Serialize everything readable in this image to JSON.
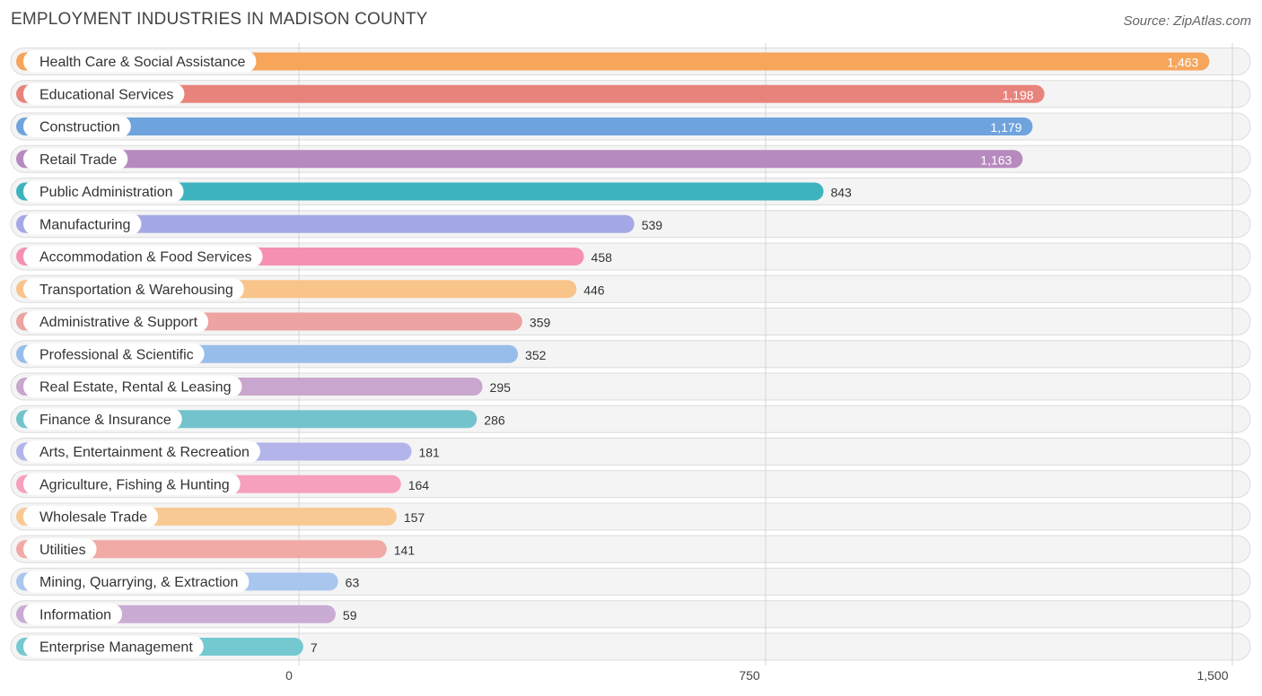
{
  "chart_data": {
    "type": "bar",
    "orientation": "horizontal",
    "title": "EMPLOYMENT INDUSTRIES IN MADISON COUNTY",
    "source": "Source: ZipAtlas.com",
    "categories": [
      "Health Care & Social Assistance",
      "Educational Services",
      "Construction",
      "Retail Trade",
      "Public Administration",
      "Manufacturing",
      "Accommodation & Food Services",
      "Transportation & Warehousing",
      "Administrative & Support",
      "Professional & Scientific",
      "Real Estate, Rental & Leasing",
      "Finance & Insurance",
      "Arts, Entertainment & Recreation",
      "Agriculture, Fishing & Hunting",
      "Wholesale Trade",
      "Utilities",
      "Mining, Quarrying, & Extraction",
      "Information",
      "Enterprise Management"
    ],
    "values": [
      1463,
      1198,
      1179,
      1163,
      843,
      539,
      458,
      446,
      359,
      352,
      295,
      286,
      181,
      164,
      157,
      141,
      63,
      59,
      7
    ],
    "value_labels": [
      "1,463",
      "1,198",
      "1,179",
      "1,163",
      "843",
      "539",
      "458",
      "446",
      "359",
      "352",
      "295",
      "286",
      "181",
      "164",
      "157",
      "141",
      "63",
      "59",
      "7"
    ],
    "colors": [
      "#f6a55b",
      "#e8837c",
      "#6fa3dd",
      "#b78abf",
      "#3eb3c0",
      "#a4a9e6",
      "#f590b3",
      "#f9c48a",
      "#eda3a2",
      "#97bdea",
      "#c9a6cd",
      "#73c3cc",
      "#b3b5ea",
      "#f6a0bd",
      "#f9c994",
      "#f1aaa6",
      "#a9c6ee",
      "#c9abd3",
      "#74c8d0"
    ],
    "xlim": [
      0,
      1500
    ],
    "xticks": [
      0,
      750,
      1500
    ],
    "xtick_labels": [
      "0",
      "750",
      "1,500"
    ],
    "xlabel": "",
    "ylabel": "",
    "grid": true
  }
}
